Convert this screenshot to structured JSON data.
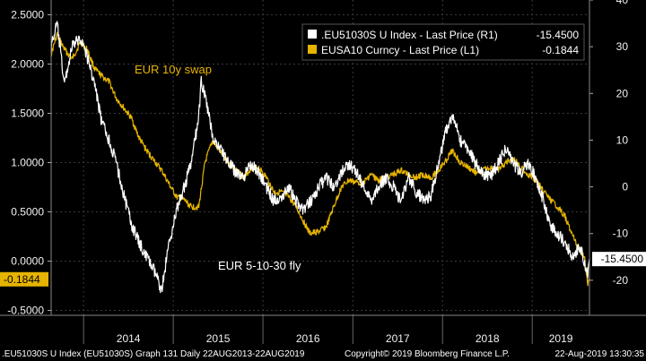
{
  "chart_data": {
    "type": "line",
    "x_range": [
      "2013-08-22",
      "2019-08-22"
    ],
    "x_tick_labels": [
      "2014",
      "2015",
      "2016",
      "2017",
      "2018",
      "2019"
    ],
    "y_left": {
      "ticks": [
        "2.5000",
        "2.0000",
        "1.5000",
        "1.0000",
        "0.5000",
        "0.0000",
        "-0.5000"
      ],
      "ylim": [
        -0.55,
        2.65
      ]
    },
    "y_right": {
      "ticks": [
        "40",
        "30",
        "20",
        "10",
        "0",
        "-10",
        "-20"
      ],
      "ylim": [
        -27.5,
        40
      ]
    },
    "grid": true,
    "legend": {
      "position": "top-right",
      "entries": [
        {
          "label": ".EU51030S U Index - Last Price (R1)",
          "value": "-15.4500",
          "color": "#ffffff"
        },
        {
          "label": "EUSA10 Curncy - Last Price (L1)",
          "value": "-0.1844",
          "color": "#e6b400"
        }
      ]
    },
    "annotations": {
      "swap_label": "EUR 10y swap",
      "fly_label": "EUR 5-10-30 fly"
    },
    "last_value_flags": {
      "left": "-0.1844",
      "right": "-15.4500"
    },
    "series": [
      {
        "name": "EUSA10 Curncy - Last Price (L1)",
        "axis": "left",
        "color": "#e6b400",
        "points": [
          [
            "2013-08-22",
            2.1
          ],
          [
            "2013-09-15",
            2.3
          ],
          [
            "2013-10-15",
            2.15
          ],
          [
            "2013-11-15",
            2.05
          ],
          [
            "2013-12-20",
            2.22
          ],
          [
            "2014-01-15",
            2.15
          ],
          [
            "2014-02-15",
            1.95
          ],
          [
            "2014-03-15",
            1.88
          ],
          [
            "2014-04-15",
            1.82
          ],
          [
            "2014-05-15",
            1.65
          ],
          [
            "2014-06-15",
            1.55
          ],
          [
            "2014-07-15",
            1.45
          ],
          [
            "2014-08-15",
            1.25
          ],
          [
            "2014-09-15",
            1.12
          ],
          [
            "2014-10-15",
            1.02
          ],
          [
            "2014-11-15",
            0.92
          ],
          [
            "2014-12-15",
            0.78
          ],
          [
            "2015-01-15",
            0.65
          ],
          [
            "2015-02-15",
            0.62
          ],
          [
            "2015-03-15",
            0.55
          ],
          [
            "2015-04-15",
            0.55
          ],
          [
            "2015-05-10",
            1.0
          ],
          [
            "2015-06-10",
            1.22
          ],
          [
            "2015-07-15",
            1.1
          ],
          [
            "2015-08-15",
            1.0
          ],
          [
            "2015-09-15",
            0.92
          ],
          [
            "2015-10-15",
            0.85
          ],
          [
            "2015-11-15",
            0.95
          ],
          [
            "2015-12-15",
            0.95
          ],
          [
            "2016-01-15",
            0.85
          ],
          [
            "2016-02-15",
            0.7
          ],
          [
            "2016-03-15",
            0.7
          ],
          [
            "2016-04-15",
            0.65
          ],
          [
            "2016-05-15",
            0.55
          ],
          [
            "2016-06-15",
            0.4
          ],
          [
            "2016-07-10",
            0.28
          ],
          [
            "2016-08-15",
            0.3
          ],
          [
            "2016-09-15",
            0.35
          ],
          [
            "2016-10-15",
            0.55
          ],
          [
            "2016-11-15",
            0.75
          ],
          [
            "2016-12-15",
            0.82
          ],
          [
            "2017-01-15",
            0.8
          ],
          [
            "2017-02-15",
            0.8
          ],
          [
            "2017-03-15",
            0.88
          ],
          [
            "2017-04-15",
            0.82
          ],
          [
            "2017-05-15",
            0.85
          ],
          [
            "2017-06-15",
            0.88
          ],
          [
            "2017-07-15",
            0.92
          ],
          [
            "2017-08-15",
            0.88
          ],
          [
            "2017-09-15",
            0.85
          ],
          [
            "2017-10-15",
            0.88
          ],
          [
            "2017-11-15",
            0.85
          ],
          [
            "2017-12-15",
            0.92
          ],
          [
            "2018-01-15",
            1.02
          ],
          [
            "2018-02-10",
            1.12
          ],
          [
            "2018-03-15",
            1.0
          ],
          [
            "2018-04-15",
            0.95
          ],
          [
            "2018-05-15",
            0.9
          ],
          [
            "2018-06-15",
            0.92
          ],
          [
            "2018-07-15",
            0.95
          ],
          [
            "2018-08-15",
            0.92
          ],
          [
            "2018-09-15",
            1.0
          ],
          [
            "2018-10-15",
            1.05
          ],
          [
            "2018-11-15",
            0.95
          ],
          [
            "2018-12-15",
            0.88
          ],
          [
            "2019-01-15",
            0.82
          ],
          [
            "2019-02-15",
            0.72
          ],
          [
            "2019-03-15",
            0.62
          ],
          [
            "2019-04-15",
            0.55
          ],
          [
            "2019-05-15",
            0.45
          ],
          [
            "2019-06-15",
            0.25
          ],
          [
            "2019-07-15",
            0.12
          ],
          [
            "2019-08-01",
            0.05
          ],
          [
            "2019-08-15",
            -0.22
          ],
          [
            "2019-08-22",
            -0.18
          ]
        ]
      },
      {
        "name": ".EU51030S U Index - Last Price (R1)",
        "axis": "right",
        "color": "#ffffff",
        "points": [
          [
            "2013-08-22",
            30
          ],
          [
            "2013-09-15",
            35
          ],
          [
            "2013-10-15",
            22
          ],
          [
            "2013-11-15",
            30
          ],
          [
            "2013-12-20",
            32
          ],
          [
            "2014-01-15",
            28
          ],
          [
            "2014-02-15",
            22
          ],
          [
            "2014-03-15",
            14
          ],
          [
            "2014-04-15",
            10
          ],
          [
            "2014-05-15",
            5
          ],
          [
            "2014-06-15",
            -2
          ],
          [
            "2014-07-15",
            -8
          ],
          [
            "2014-08-15",
            -12
          ],
          [
            "2014-09-15",
            -15
          ],
          [
            "2014-10-15",
            -18
          ],
          [
            "2014-11-15",
            -22
          ],
          [
            "2014-12-15",
            -12
          ],
          [
            "2015-01-15",
            -5
          ],
          [
            "2015-02-15",
            0
          ],
          [
            "2015-03-15",
            5
          ],
          [
            "2015-04-15",
            15
          ],
          [
            "2015-04-25",
            23
          ],
          [
            "2015-05-15",
            18
          ],
          [
            "2015-06-15",
            10
          ],
          [
            "2015-07-15",
            8
          ],
          [
            "2015-08-15",
            5
          ],
          [
            "2015-09-15",
            3
          ],
          [
            "2015-10-15",
            2
          ],
          [
            "2015-11-15",
            5
          ],
          [
            "2015-12-15",
            3
          ],
          [
            "2016-01-15",
            0
          ],
          [
            "2016-02-15",
            -3
          ],
          [
            "2016-03-15",
            -2
          ],
          [
            "2016-04-15",
            0
          ],
          [
            "2016-05-15",
            -3
          ],
          [
            "2016-06-15",
            -5
          ],
          [
            "2016-07-15",
            -3
          ],
          [
            "2016-08-15",
            0
          ],
          [
            "2016-09-15",
            2
          ],
          [
            "2016-10-15",
            0
          ],
          [
            "2016-11-15",
            3
          ],
          [
            "2016-12-15",
            5
          ],
          [
            "2017-01-15",
            3
          ],
          [
            "2017-02-15",
            0
          ],
          [
            "2017-03-15",
            -3
          ],
          [
            "2017-04-15",
            0
          ],
          [
            "2017-05-15",
            2
          ],
          [
            "2017-06-15",
            0
          ],
          [
            "2017-07-15",
            -3
          ],
          [
            "2017-08-15",
            2
          ],
          [
            "2017-09-15",
            -1
          ],
          [
            "2017-10-15",
            -3
          ],
          [
            "2017-11-15",
            -2
          ],
          [
            "2017-12-15",
            5
          ],
          [
            "2018-01-15",
            12
          ],
          [
            "2018-02-10",
            15
          ],
          [
            "2018-03-15",
            10
          ],
          [
            "2018-04-15",
            8
          ],
          [
            "2018-05-15",
            5
          ],
          [
            "2018-06-15",
            3
          ],
          [
            "2018-07-15",
            2
          ],
          [
            "2018-08-15",
            5
          ],
          [
            "2018-09-15",
            8
          ],
          [
            "2018-10-15",
            5
          ],
          [
            "2018-11-15",
            3
          ],
          [
            "2018-12-15",
            5
          ],
          [
            "2019-01-15",
            2
          ],
          [
            "2019-02-15",
            -3
          ],
          [
            "2019-03-15",
            -8
          ],
          [
            "2019-04-15",
            -10
          ],
          [
            "2019-05-15",
            -12
          ],
          [
            "2019-06-15",
            -15
          ],
          [
            "2019-07-15",
            -13
          ],
          [
            "2019-08-01",
            -16
          ],
          [
            "2019-08-15",
            -19
          ],
          [
            "2019-08-22",
            -15.45
          ]
        ]
      }
    ]
  },
  "footer": {
    "left": ".EU51030S U Index (EU51030S) Graph 131  Daily 22AUG2013-22AUG2019",
    "center": "Copyright© 2019 Bloomberg Finance L.P.",
    "right": "22-Aug-2019 13:30:35"
  }
}
